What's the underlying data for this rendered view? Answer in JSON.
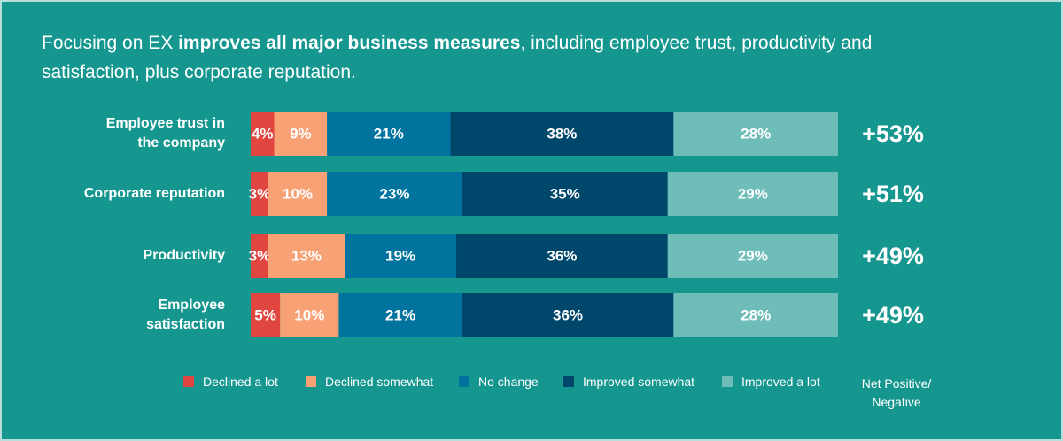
{
  "chart_data": {
    "type": "stacked-bar-horizontal",
    "title_before": "Focusing on EX ",
    "title_bold": "improves all major business measures",
    "title_after": ", including employee trust, productivity and satisfaction, plus corporate reputation.",
    "categories": [
      "Employee trust in the company",
      "Corporate reputation",
      "Productivity",
      "Employee satisfaction"
    ],
    "xlim": [
      0,
      100
    ],
    "series": [
      {
        "name": "Declined a lot",
        "color": "#e1453f",
        "values": [
          4,
          3,
          3,
          5
        ],
        "value_labels": [
          "4%",
          "3%",
          "3%",
          "5%"
        ]
      },
      {
        "name": "Declined somewhat",
        "color": "#f8a175",
        "values": [
          9,
          10,
          13,
          10
        ],
        "value_labels": [
          "9%",
          "10%",
          "13%",
          "10%"
        ]
      },
      {
        "name": "No change",
        "color": "#00739f",
        "values": [
          21,
          23,
          19,
          21
        ],
        "value_labels": [
          "21%",
          "23%",
          "19%",
          "21%"
        ]
      },
      {
        "name": "Improved somewhat",
        "color": "#00476c",
        "values": [
          38,
          35,
          36,
          36
        ],
        "value_labels": [
          "38%",
          "35%",
          "36%",
          "36%"
        ]
      },
      {
        "name": "Improved a lot",
        "color": "#6fbdb9",
        "values": [
          28,
          29,
          29,
          28
        ],
        "value_labels": [
          "28%",
          "29%",
          "29%",
          "28%"
        ]
      }
    ],
    "net_title": "Net Positive/ Negative",
    "net_values": [
      53,
      51,
      49,
      49
    ],
    "net_labels": [
      "+53%",
      "+51%",
      "+49%",
      "+49%"
    ]
  }
}
